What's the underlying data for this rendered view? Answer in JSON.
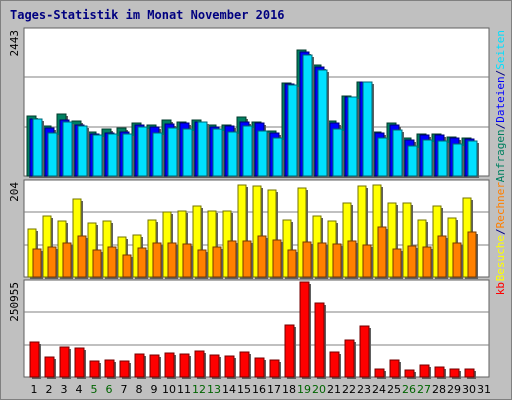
{
  "title": "Tages-Statistik im Monat November 2016",
  "colors": {
    "background": "#c0c0c0",
    "plot_bg": "#ffffff",
    "title": "#000080",
    "grid": "#808080",
    "weekend_label": "#006400",
    "hits": "#008060",
    "files": "#0000ff",
    "pages": "#00e0ff",
    "visits": "#ffff00",
    "sites": "#ff8000",
    "kb": "#ff0000"
  },
  "chart_data": [
    {
      "type": "bar",
      "name": "hits-files-pages",
      "categories": [
        "1",
        "2",
        "3",
        "4",
        "5",
        "6",
        "7",
        "8",
        "9",
        "10",
        "11",
        "12",
        "13",
        "14",
        "15",
        "16",
        "17",
        "18",
        "19",
        "20",
        "21",
        "22",
        "23",
        "24",
        "25",
        "26",
        "27",
        "28",
        "29",
        "30",
        "31"
      ],
      "weekend_days": [
        "5",
        "6",
        "12",
        "13",
        "19",
        "20",
        "26",
        "27"
      ],
      "ymax_label": "2443",
      "ylim": [
        0,
        2443
      ],
      "side_labels": [
        "Anfragen",
        "/",
        "Dateien",
        "/",
        "Seiten"
      ],
      "series": [
        {
          "name": "Anfragen",
          "values": [
            1000,
            840,
            1040,
            920,
            730,
            780,
            800,
            880,
            850,
            930,
            900,
            930,
            850,
            850,
            990,
            910,
            760,
            1560,
            2110,
            1860,
            920,
            1340,
            1580,
            740,
            880,
            630,
            700,
            710,
            650,
            640,
            0
          ]
        },
        {
          "name": "Dateien",
          "values": [
            960,
            810,
            930,
            860,
            700,
            720,
            740,
            850,
            820,
            870,
            880,
            910,
            820,
            830,
            900,
            880,
            720,
            1540,
            2070,
            1820,
            890,
            1330,
            1570,
            720,
            860,
            610,
            680,
            690,
            630,
            620,
            0
          ]
        },
        {
          "name": "Seiten",
          "values": [
            960,
            720,
            900,
            840,
            680,
            700,
            700,
            820,
            720,
            810,
            790,
            900,
            780,
            730,
            840,
            750,
            640,
            1520,
            2030,
            1780,
            790,
            1330,
            1570,
            640,
            770,
            500,
            600,
            590,
            530,
            580,
            0
          ]
        }
      ]
    },
    {
      "type": "bar",
      "name": "visits-sites",
      "categories": [
        "1",
        "2",
        "3",
        "4",
        "5",
        "6",
        "7",
        "8",
        "9",
        "10",
        "11",
        "12",
        "13",
        "14",
        "15",
        "16",
        "17",
        "18",
        "19",
        "20",
        "21",
        "22",
        "23",
        "24",
        "25",
        "26",
        "27",
        "28",
        "29",
        "30",
        "31"
      ],
      "ymax_label": "204",
      "ylim": [
        0,
        204
      ],
      "side_labels": [
        "Besuche",
        "/",
        "Rechner"
      ],
      "series": [
        {
          "name": "Besuche",
          "values": [
            103,
            132,
            121,
            167,
            116,
            120,
            85,
            90,
            123,
            140,
            141,
            152,
            142,
            142,
            197,
            196,
            186,
            123,
            192,
            131,
            121,
            158,
            195,
            198,
            158,
            159,
            123,
            153,
            126,
            170,
            0
          ]
        },
        {
          "name": "Rechner",
          "values": [
            61,
            64,
            74,
            88,
            58,
            65,
            48,
            62,
            73,
            73,
            70,
            59,
            65,
            77,
            78,
            87,
            80,
            57,
            76,
            72,
            70,
            77,
            69,
            108,
            60,
            67,
            64,
            87,
            74,
            96,
            0
          ]
        }
      ]
    },
    {
      "type": "bar",
      "name": "kb",
      "categories": [
        "1",
        "2",
        "3",
        "4",
        "5",
        "6",
        "7",
        "8",
        "9",
        "10",
        "11",
        "12",
        "13",
        "14",
        "15",
        "16",
        "17",
        "18",
        "19",
        "20",
        "21",
        "22",
        "23",
        "24",
        "25",
        "26",
        "27",
        "28",
        "29",
        "30",
        "31"
      ],
      "ymax_label": "250955",
      "ylim": [
        0,
        250955
      ],
      "side_labels": [
        "kb"
      ],
      "series": [
        {
          "name": "kb",
          "values": [
            92000,
            52000,
            79000,
            76000,
            41000,
            46000,
            43000,
            60000,
            57000,
            64000,
            60000,
            69000,
            57000,
            55000,
            65000,
            51000,
            45000,
            138000,
            250955,
            195000,
            66000,
            98000,
            134000,
            21000,
            46000,
            18000,
            33000,
            27000,
            22000,
            22000,
            0
          ]
        }
      ]
    }
  ]
}
